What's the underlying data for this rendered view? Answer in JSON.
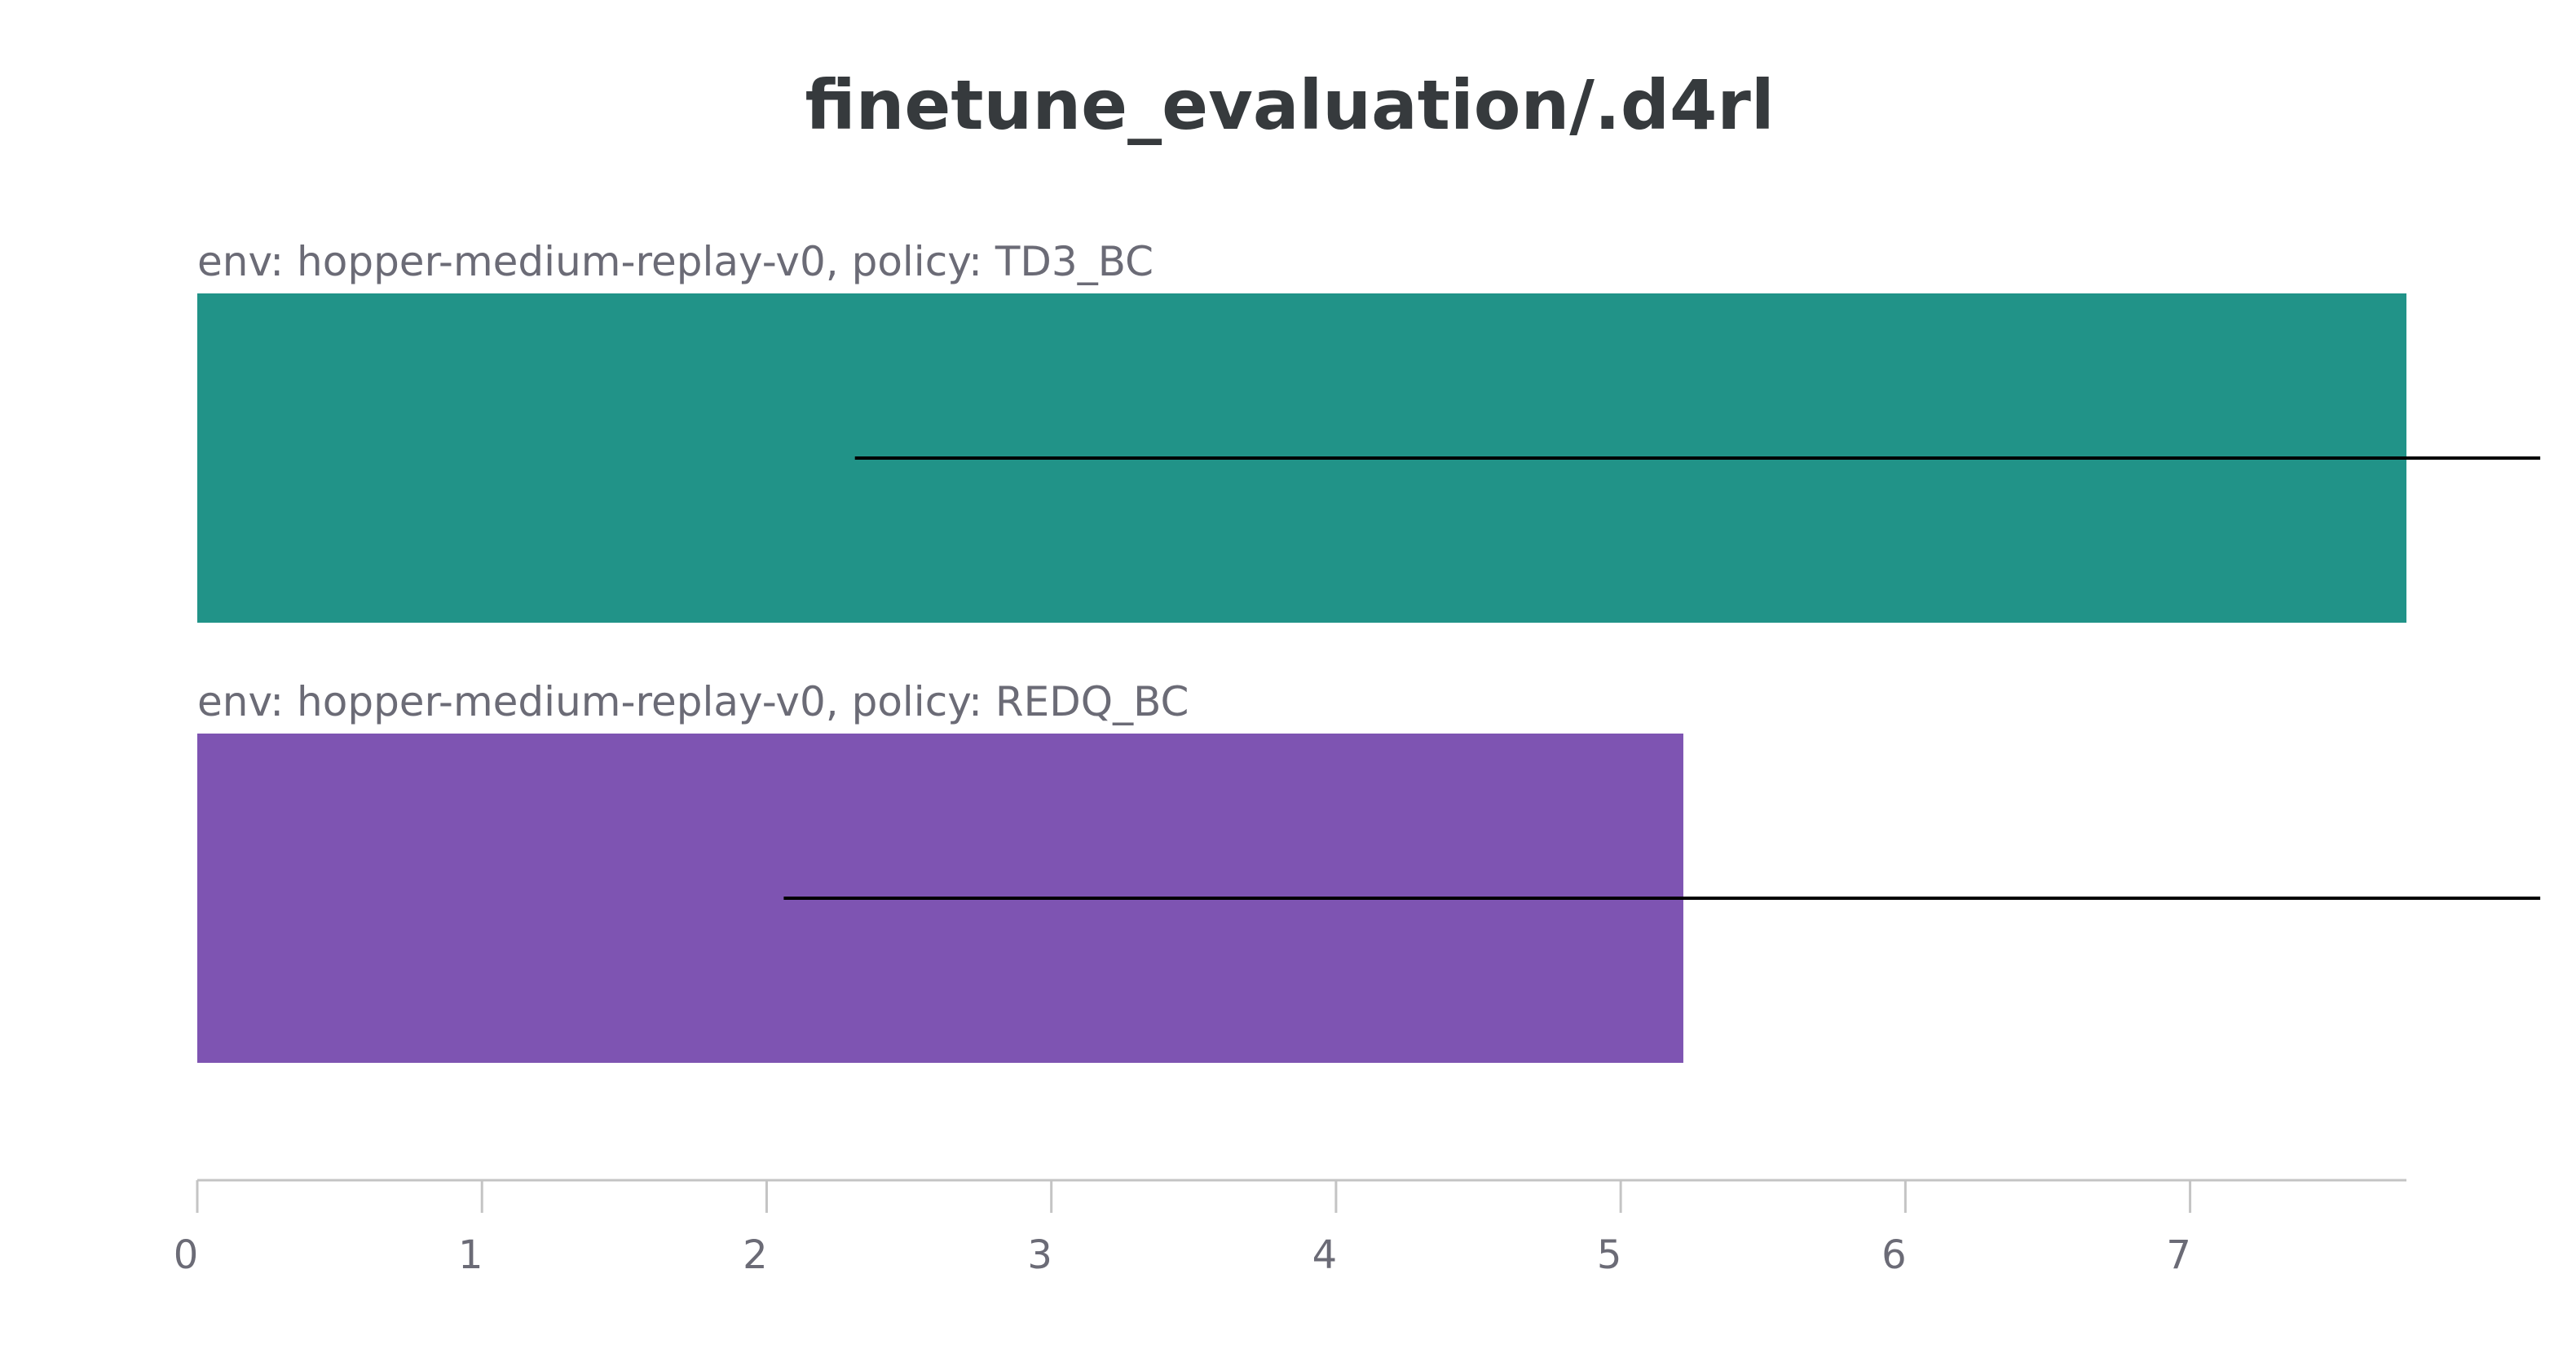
{
  "chart_data": {
    "type": "bar",
    "orientation": "horizontal",
    "title": "finetune_evaluation/.d4rl",
    "xlabel": "",
    "ylabel": "",
    "xlim": [
      0,
      7.76
    ],
    "ticks": [
      0,
      1,
      2,
      3,
      4,
      5,
      6,
      7
    ],
    "grid": false,
    "legend": "none",
    "series": [
      {
        "label": "env: hopper-medium-replay-v0, policy: TD3_BC",
        "value": 7.76,
        "error_low": 2.31,
        "error_high": 8.23,
        "color": "#219388"
      },
      {
        "label": "env: hopper-medium-replay-v0, policy: REDQ_BC",
        "value": 5.22,
        "error_low": 2.06,
        "error_high": 8.23,
        "color": "#7e54b2"
      }
    ],
    "axis_color": "#c4c4c4",
    "errorbar_color": "#000000"
  }
}
